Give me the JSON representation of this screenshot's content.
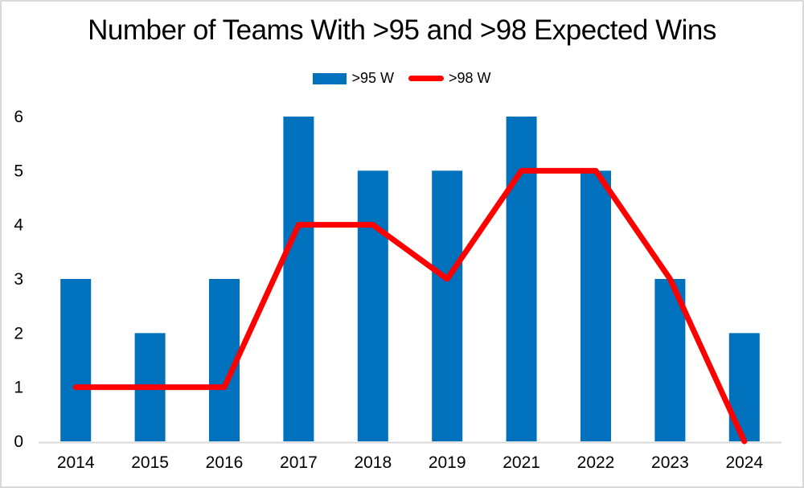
{
  "chart_data": {
    "type": "combo",
    "title": "Number of Teams With >95 and >98 Expected Wins",
    "categories": [
      "2014",
      "2015",
      "2016",
      "2017",
      "2018",
      "2019",
      "2021",
      "2022",
      "2023",
      "2024"
    ],
    "series": [
      {
        "name": ">95 W",
        "type": "bar",
        "color": "#0071BC",
        "values": [
          3,
          2,
          3,
          6,
          5,
          5,
          6,
          5,
          3,
          2
        ]
      },
      {
        "name": ">98 W",
        "type": "line",
        "color": "#FF0000",
        "values": [
          1,
          1,
          1,
          4,
          4,
          3,
          5,
          5,
          3,
          0
        ]
      }
    ],
    "xlabel": "",
    "ylabel": "",
    "ylim": [
      0,
      6
    ],
    "ytick_step": 1,
    "yticks": [
      "0",
      "1",
      "2",
      "3",
      "4",
      "5",
      "6"
    ],
    "gridlines": false,
    "legend_position": "top",
    "axis_color": "#D9D9D9",
    "text_color": "#000000",
    "background_color": "#FFFFFF",
    "border_color": "#D9D9D9"
  }
}
